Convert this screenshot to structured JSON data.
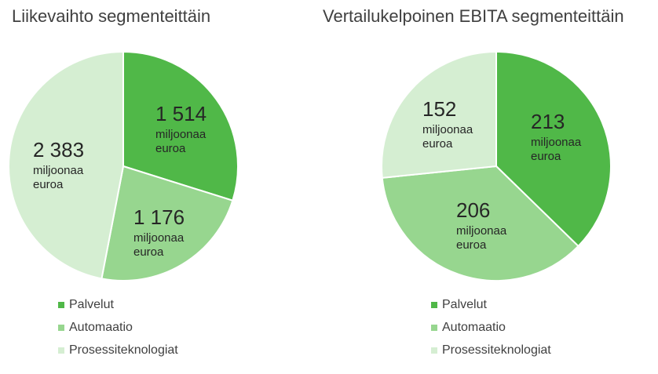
{
  "chart_data": [
    {
      "type": "pie",
      "title": "Liikevaihto segmenteittäin",
      "categories": [
        "Palvelut",
        "Automaatio",
        "Prosessiteknologiat"
      ],
      "values": [
        1514,
        1176,
        2383
      ],
      "value_labels": [
        "1 514",
        "1 176",
        "2 383"
      ],
      "value_unit": [
        "miljoonaa",
        "euroa"
      ],
      "colors": [
        "#50b848",
        "#97d68f",
        "#d5eed2"
      ]
    },
    {
      "type": "pie",
      "title": "Vertailukelpoinen EBITA segmenteittäin",
      "categories": [
        "Palvelut",
        "Automaatio",
        "Prosessiteknologiat"
      ],
      "values": [
        213,
        206,
        152
      ],
      "value_labels": [
        "213",
        "206",
        "152"
      ],
      "value_unit": [
        "miljoonaa",
        "euroa"
      ],
      "colors": [
        "#50b848",
        "#97d68f",
        "#d5eed2"
      ]
    }
  ]
}
